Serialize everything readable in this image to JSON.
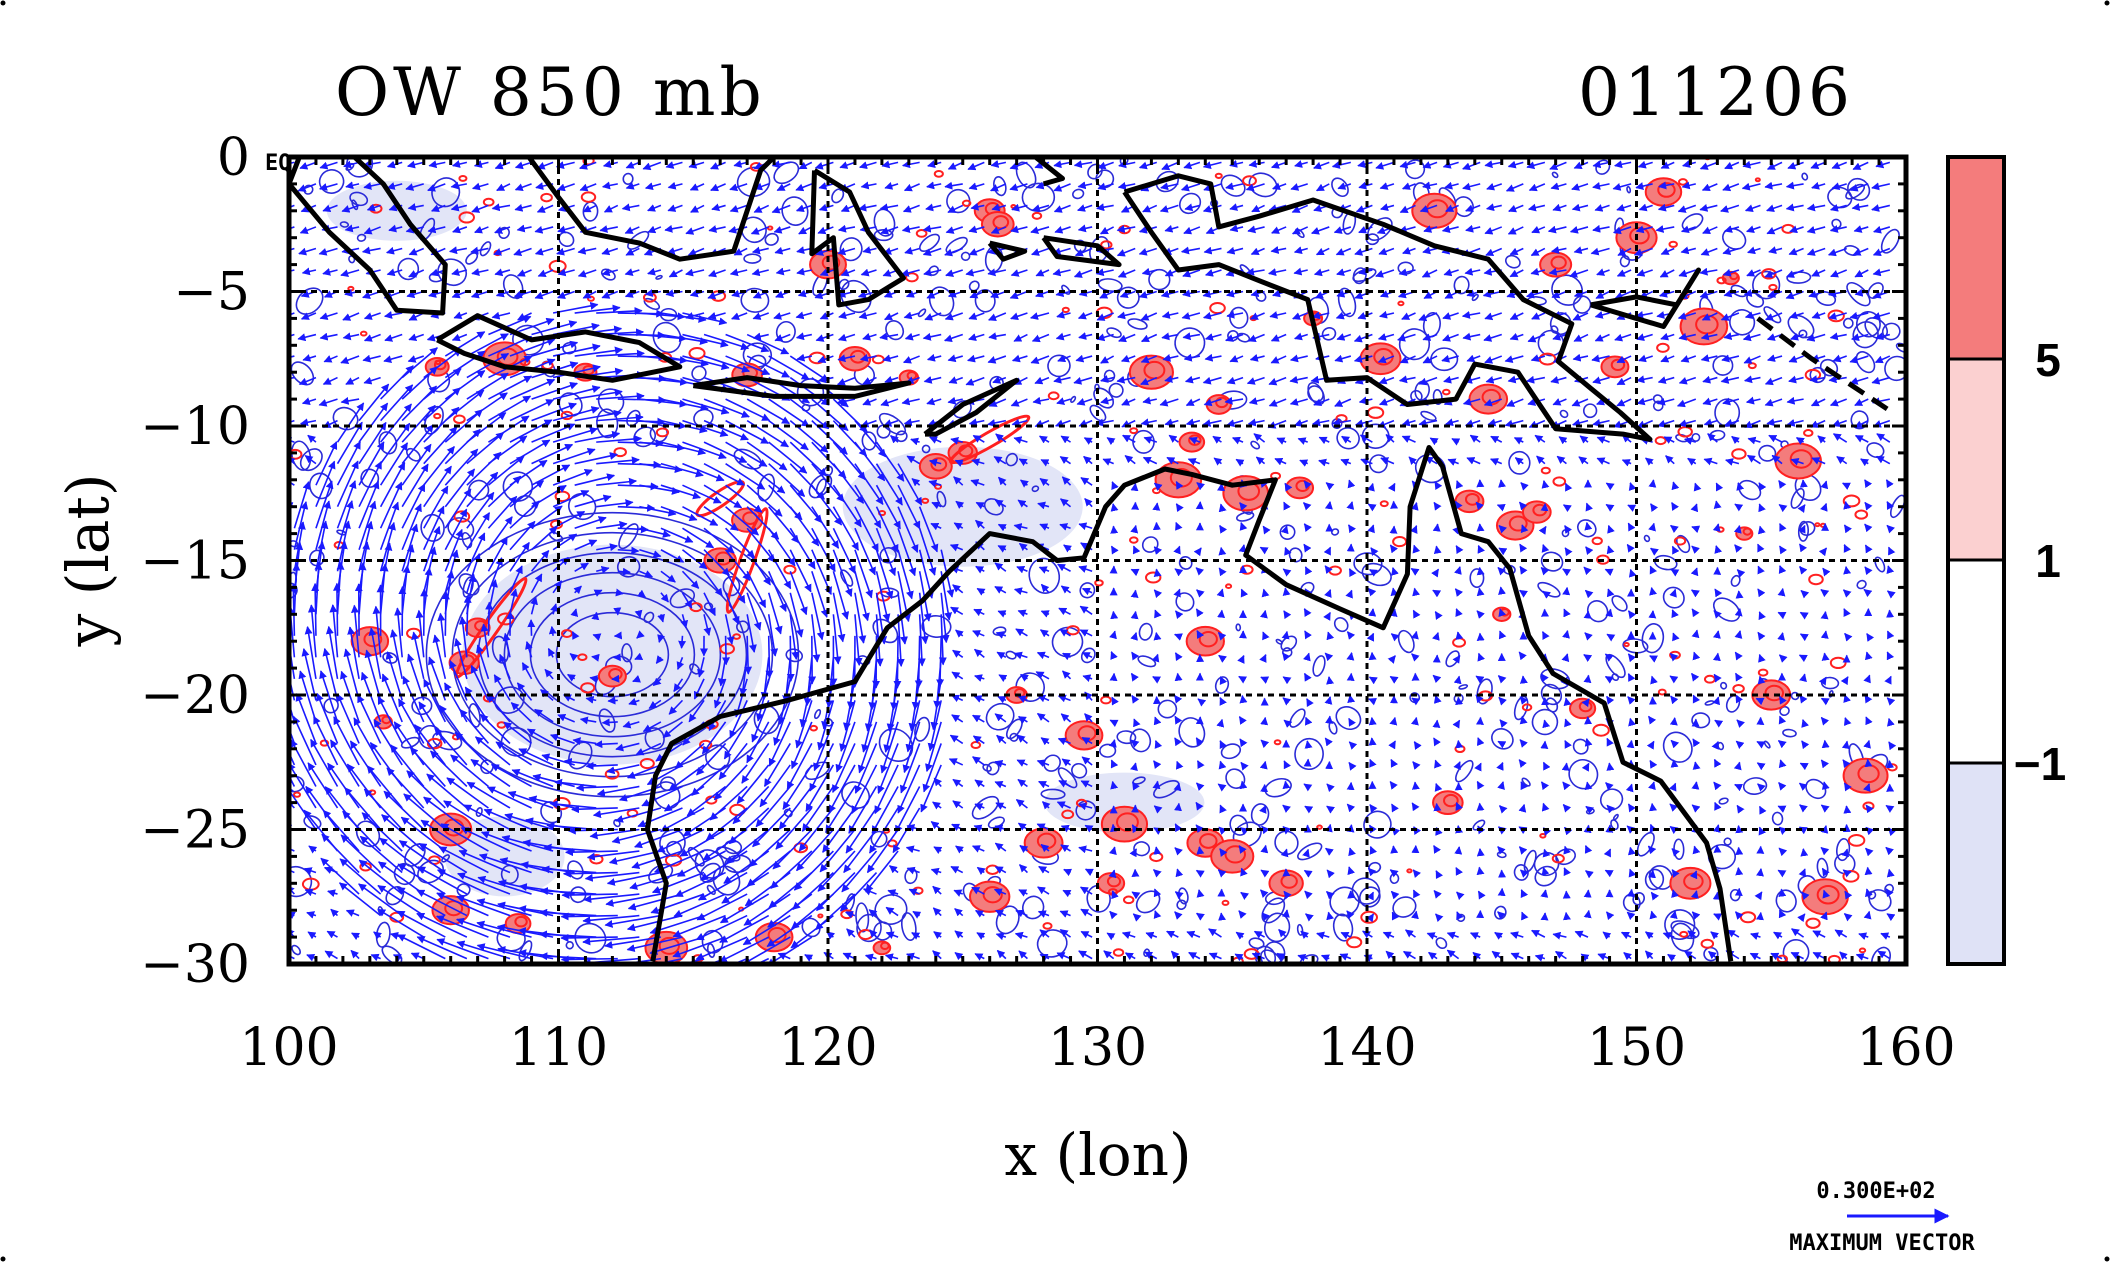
{
  "chart_data": {
    "type": "heatmap",
    "title": "OW 850 mb",
    "date_label": "011206",
    "xlabel": "x (lon)",
    "ylabel": "y (lat)",
    "xlim": [
      100,
      160
    ],
    "ylim": [
      -30,
      0
    ],
    "x_ticks": [
      "100",
      "110",
      "120",
      "130",
      "140",
      "150",
      "160"
    ],
    "y_ticks": [
      "0",
      "−5",
      "−10",
      "−15",
      "−20",
      "−25",
      "−30"
    ],
    "eq_label": "EQ",
    "grid": true,
    "colorbar": {
      "levels": [
        "5",
        "1",
        "−1"
      ],
      "bands": [
        "#f47c7c",
        "#fbd0d0",
        "#ffffff",
        "#dfe2f6"
      ]
    },
    "vector_key": {
      "value": "0.300E+02",
      "label": "MAXIMUM VECTOR"
    },
    "colors": {
      "vectors": "#1a1aff",
      "positive_contour": "#ff2020",
      "negative_contour": "#2b2bd8",
      "negative_fill": "#dfe2f6",
      "positive_fill": "#f47c7c",
      "coastline": "#000000"
    }
  }
}
